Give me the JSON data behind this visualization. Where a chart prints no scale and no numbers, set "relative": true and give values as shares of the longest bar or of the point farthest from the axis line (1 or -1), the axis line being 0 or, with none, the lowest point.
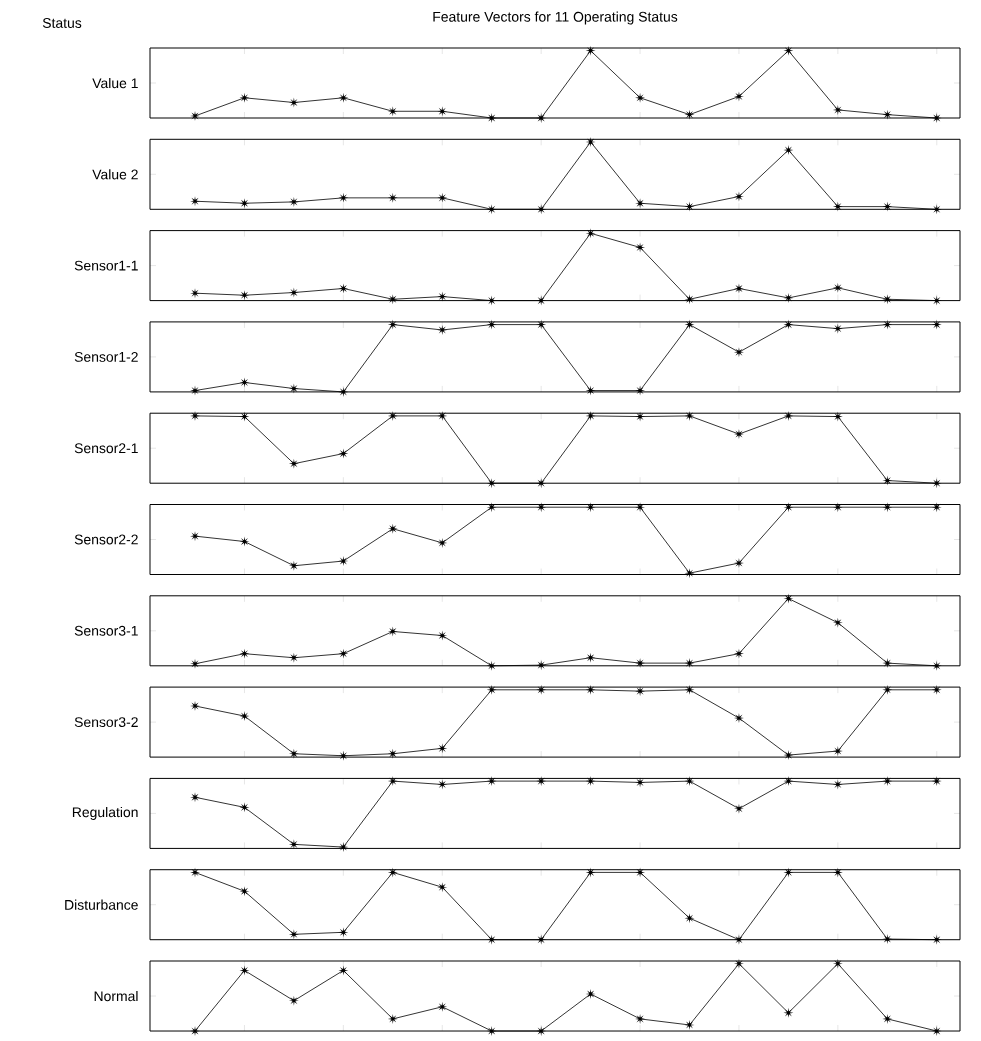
{
  "chart_data": [
    {
      "type": "line",
      "title": "Feature Vectors for 11 Operating Status",
      "annotations": [
        "Status"
      ],
      "ylabel": "Value 1",
      "relative": true,
      "marker": "star",
      "categories": [
        null,
        null,
        null,
        null,
        null,
        null,
        null,
        null,
        null,
        null,
        null,
        null,
        null,
        null,
        null,
        null
      ],
      "series": [
        {
          "color": "#000000",
          "values": [
            0.03,
            0.3,
            0.23,
            0.3,
            0.1,
            0.1,
            0,
            0,
            1,
            0.3,
            0.05,
            0.32,
            1,
            0.12,
            0.05,
            0
          ]
        }
      ]
    },
    {
      "type": "line",
      "ylabel": "Value 2",
      "relative": true,
      "marker": "star",
      "categories": [
        null,
        null,
        null,
        null,
        null,
        null,
        null,
        null,
        null,
        null,
        null,
        null,
        null,
        null,
        null,
        null
      ],
      "series": [
        {
          "color": "#000000",
          "values": [
            0.12,
            0.09,
            0.11,
            0.17,
            0.17,
            0.17,
            0,
            0,
            1,
            0.09,
            0.04,
            0.19,
            0.88,
            0.04,
            0.04,
            0
          ]
        }
      ]
    },
    {
      "type": "line",
      "ylabel": "Sensor1-1",
      "relative": true,
      "marker": "star",
      "categories": [
        null,
        null,
        null,
        null,
        null,
        null,
        null,
        null,
        null,
        null,
        null,
        null,
        null,
        null,
        null,
        null
      ],
      "series": [
        {
          "color": "#000000",
          "values": [
            0.11,
            0.08,
            0.12,
            0.18,
            0.02,
            0.06,
            0,
            0,
            1,
            0.79,
            0.02,
            0.18,
            0.04,
            0.19,
            0.02,
            0
          ]
        }
      ]
    },
    {
      "type": "line",
      "ylabel": "Sensor1-2",
      "relative": true,
      "marker": "star",
      "categories": [
        null,
        null,
        null,
        null,
        null,
        null,
        null,
        null,
        null,
        null,
        null,
        null,
        null,
        null,
        null,
        null
      ],
      "series": [
        {
          "color": "#000000",
          "values": [
            0.02,
            0.14,
            0.05,
            0,
            1,
            0.92,
            1,
            1,
            0.02,
            0.02,
            1,
            0.59,
            1,
            0.94,
            1,
            1
          ]
        }
      ]
    },
    {
      "type": "line",
      "ylabel": "Sensor2-1",
      "relative": true,
      "marker": "star",
      "categories": [
        null,
        null,
        null,
        null,
        null,
        null,
        null,
        null,
        null,
        null,
        null,
        null,
        null,
        null,
        null,
        null
      ],
      "series": [
        {
          "color": "#000000",
          "values": [
            1,
            0.99,
            0.29,
            0.44,
            1,
            1,
            0,
            0,
            1,
            0.99,
            1,
            0.73,
            1,
            0.99,
            0.04,
            0
          ]
        }
      ]
    },
    {
      "type": "line",
      "ylabel": "Sensor2-2",
      "relative": true,
      "marker": "star",
      "categories": [
        null,
        null,
        null,
        null,
        null,
        null,
        null,
        null,
        null,
        null,
        null,
        null,
        null,
        null,
        null,
        null
      ],
      "series": [
        {
          "color": "#000000",
          "values": [
            0.57,
            0.49,
            0.13,
            0.2,
            0.68,
            0.47,
            1,
            1,
            1,
            1,
            0.02,
            0.17,
            1,
            1,
            1,
            1
          ]
        }
      ]
    },
    {
      "type": "line",
      "ylabel": "Sensor3-1",
      "relative": true,
      "marker": "star",
      "categories": [
        null,
        null,
        null,
        null,
        null,
        null,
        null,
        null,
        null,
        null,
        null,
        null,
        null,
        null,
        null,
        null
      ],
      "series": [
        {
          "color": "#000000",
          "values": [
            0.03,
            0.18,
            0.12,
            0.18,
            0.51,
            0.45,
            0,
            0.01,
            0.12,
            0.04,
            0.04,
            0.18,
            1,
            0.64,
            0.04,
            0
          ]
        }
      ]
    },
    {
      "type": "line",
      "ylabel": "Sensor3-2",
      "relative": true,
      "marker": "star",
      "categories": [
        null,
        null,
        null,
        null,
        null,
        null,
        null,
        null,
        null,
        null,
        null,
        null,
        null,
        null,
        null,
        null
      ],
      "series": [
        {
          "color": "#000000",
          "values": [
            0.76,
            0.61,
            0.05,
            0.02,
            0.05,
            0.13,
            1,
            1,
            1,
            0.98,
            1,
            0.58,
            0.03,
            0.09,
            1,
            1
          ]
        }
      ]
    },
    {
      "type": "line",
      "ylabel": "Regulation",
      "relative": true,
      "marker": "star",
      "categories": [
        null,
        null,
        null,
        null,
        null,
        null,
        null,
        null,
        null,
        null,
        null,
        null,
        null,
        null,
        null,
        null
      ],
      "series": [
        {
          "color": "#000000",
          "values": [
            0.76,
            0.61,
            0.06,
            0.02,
            1,
            0.95,
            1,
            1,
            1,
            0.98,
            1,
            0.59,
            1,
            0.95,
            1,
            1
          ]
        }
      ]
    },
    {
      "type": "line",
      "ylabel": "Disturbance",
      "relative": true,
      "marker": "star",
      "categories": [
        null,
        null,
        null,
        null,
        null,
        null,
        null,
        null,
        null,
        null,
        null,
        null,
        null,
        null,
        null,
        null
      ],
      "series": [
        {
          "color": "#000000",
          "values": [
            1,
            0.72,
            0.08,
            0.11,
            1,
            0.78,
            0,
            0,
            1,
            1,
            0.32,
            0,
            1,
            1,
            0.01,
            0
          ]
        }
      ]
    },
    {
      "type": "line",
      "ylabel": "Normal",
      "relative": true,
      "marker": "star",
      "categories": [
        null,
        null,
        null,
        null,
        null,
        null,
        null,
        null,
        null,
        null,
        null,
        null,
        null,
        null,
        null,
        null
      ],
      "series": [
        {
          "color": "#000000",
          "values": [
            0,
            0.9,
            0.45,
            0.9,
            0.18,
            0.36,
            0,
            0,
            0.55,
            0.18,
            0.09,
            1,
            0.27,
            1,
            0.18,
            0
          ]
        }
      ]
    }
  ]
}
